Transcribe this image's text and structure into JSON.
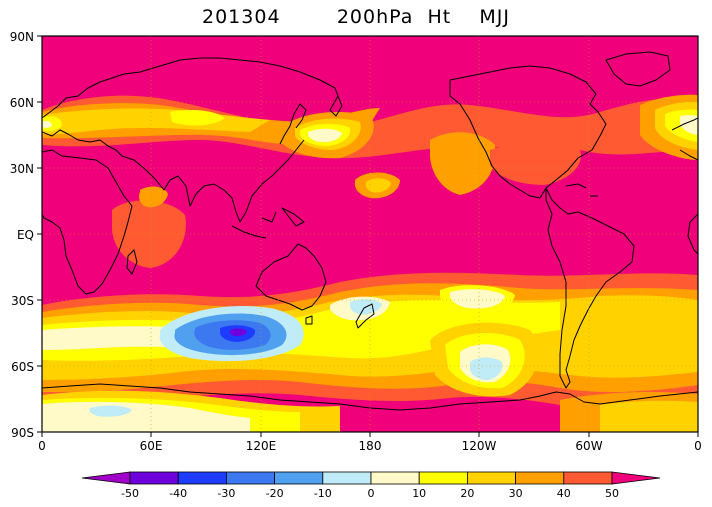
{
  "title": "201304        200hPa  Ht    MJJ",
  "map": {
    "projection": "cylindrical equidistant, 0-360E, 90S-90N",
    "lat_labels": [
      "90N",
      "60N",
      "30N",
      "EQ",
      "30S",
      "60S",
      "90S"
    ],
    "lon_labels": [
      "0",
      "60E",
      "120E",
      "180",
      "120W",
      "60W",
      "0"
    ],
    "background_class": "50+",
    "colors": {
      "lt-50": "#a000c8",
      "-50_-40": "#6e00dc",
      "-40_-30": "#1e3cff",
      "-30_-20": "#3c78f0",
      "-20_-10": "#50a0f0",
      "-10_0": "#c0ecf8",
      "0_10": "#fffac8",
      "10_20": "#ffff00",
      "20_30": "#ffd200",
      "30_40": "#ffa000",
      "40_50": "#ff5a32",
      "50+": "#f0007a"
    }
  },
  "colorbar": {
    "labels": [
      "-50",
      "-40",
      "-30",
      "-20",
      "-10",
      "0",
      "10",
      "20",
      "30",
      "40",
      "50"
    ],
    "colors": [
      "#a000c8",
      "#6e00dc",
      "#1e3cff",
      "#3c78f0",
      "#50a0f0",
      "#c0ecf8",
      "#fffac8",
      "#ffff00",
      "#ffd200",
      "#ffa000",
      "#ff5a32",
      "#f0007a"
    ]
  }
}
